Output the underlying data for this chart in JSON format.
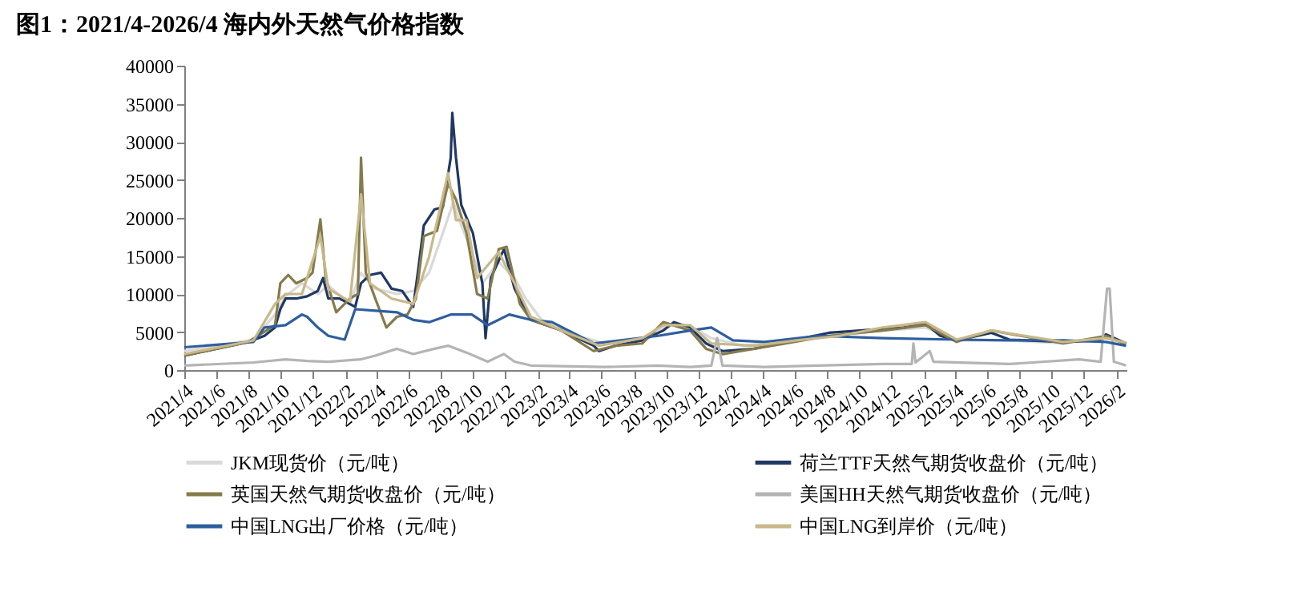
{
  "chart_data": {
    "type": "line",
    "title": "图1：2021/4-2026/4 海内外天然气价格指数",
    "xlim": [
      "2021-04-01",
      "2026-02-20"
    ],
    "xticks": [
      {
        "value": "2021-04",
        "label": "2021/4"
      },
      {
        "value": "2021-06",
        "label": "2021/6"
      },
      {
        "value": "2021-08",
        "label": "2021/8"
      },
      {
        "value": "2021-10",
        "label": "2021/10"
      },
      {
        "value": "2021-12",
        "label": "2021/12"
      },
      {
        "value": "2022-02",
        "label": "2022/2"
      },
      {
        "value": "2022-04",
        "label": "2022/4"
      },
      {
        "value": "2022-06",
        "label": "2022/6"
      },
      {
        "value": "2022-08",
        "label": "2022/8"
      },
      {
        "value": "2022-10",
        "label": "2022/10"
      },
      {
        "value": "2022-12",
        "label": "2022/12"
      },
      {
        "value": "2023-02",
        "label": "2023/2"
      },
      {
        "value": "2023-04",
        "label": "2023/4"
      },
      {
        "value": "2023-06",
        "label": "2023/6"
      },
      {
        "value": "2023-08",
        "label": "2023/8"
      },
      {
        "value": "2023-10",
        "label": "2023/10"
      },
      {
        "value": "2023-12",
        "label": "2023/12"
      },
      {
        "value": "2024-02",
        "label": "2024/2"
      },
      {
        "value": "2024-04",
        "label": "2024/4"
      },
      {
        "value": "2024-06",
        "label": "2024/6"
      },
      {
        "value": "2024-08",
        "label": "2024/8"
      },
      {
        "value": "2024-10",
        "label": "2024/10"
      },
      {
        "value": "2024-12",
        "label": "2024/12"
      },
      {
        "value": "2025-02",
        "label": "2025/2"
      },
      {
        "value": "2025-04",
        "label": "2025/4"
      },
      {
        "value": "2025-06",
        "label": "2025/6"
      },
      {
        "value": "2025-08",
        "label": "2025/8"
      },
      {
        "value": "2025-10",
        "label": "2025/10"
      },
      {
        "value": "2025-12",
        "label": "2025/12"
      },
      {
        "value": "2026-02",
        "label": "2026/2"
      }
    ],
    "ylim": [
      0,
      40000
    ],
    "yticks": [
      0,
      5000,
      10000,
      15000,
      20000,
      25000,
      30000,
      35000,
      40000
    ],
    "grid": false,
    "legend": "bottom",
    "marker": "none",
    "line_style": "solid",
    "series": [
      {
        "name": "JKM现货价（元/吨）",
        "color": "#d9d9d9",
        "x": [
          "2021-04-01",
          "2021-08-10",
          "2021-09-20",
          "2021-10-10",
          "2021-11-10",
          "2021-12-10",
          "2021-12-30",
          "2022-02-09",
          "2022-03-01",
          "2022-03-29",
          "2022-05-09",
          "2022-06-09",
          "2022-07-09",
          "2022-08-09",
          "2022-08-24",
          "2022-09-08",
          "2022-09-28",
          "2022-10-18",
          "2022-11-18",
          "2022-12-18",
          "2023-01-08",
          "2023-02-07",
          "2023-04-17",
          "2023-06-07",
          "2023-08-27",
          "2023-10-06",
          "2023-11-16",
          "2023-12-26",
          "2024-02-25",
          "2024-05-15",
          "2024-08-05",
          "2024-11-15",
          "2025-02-04",
          "2025-04-04",
          "2025-07-13",
          "2025-10-23",
          "2026-01-12",
          "2026-02-19"
        ],
        "values": [
          2500,
          4000,
          7300,
          9700,
          11400,
          10000,
          11100,
          8700,
          12800,
          10700,
          10000,
          10400,
          12800,
          19000,
          22100,
          19000,
          15500,
          11400,
          14200,
          12100,
          9400,
          6600,
          4500,
          3500,
          4200,
          5900,
          5800,
          4200,
          3200,
          3900,
          4500,
          5200,
          5600,
          3900,
          3900,
          3500,
          4200,
          3500
        ]
      },
      {
        "name": "荷兰TTF天然气期货收盘价（元/吨）",
        "color": "#1f3864",
        "x": [
          "2021-04-01",
          "2021-06-01",
          "2021-07-31",
          "2021-08-31",
          "2021-09-20",
          "2021-09-30",
          "2021-10-10",
          "2021-10-30",
          "2021-11-20",
          "2021-12-10",
          "2021-12-20",
          "2021-12-30",
          "2022-01-20",
          "2022-02-19",
          "2022-03-02",
          "2022-03-19",
          "2022-04-09",
          "2022-04-29",
          "2022-05-19",
          "2022-06-09",
          "2022-06-19",
          "2022-06-29",
          "2022-07-19",
          "2022-08-04",
          "2022-08-19",
          "2022-08-22",
          "2022-08-29",
          "2022-09-08",
          "2022-09-30",
          "2022-10-18",
          "2022-10-24",
          "2022-11-03",
          "2022-11-28",
          "2022-12-18",
          "2023-01-18",
          "2023-03-17",
          "2023-05-17",
          "2023-05-27",
          "2023-06-27",
          "2023-08-17",
          "2023-09-26",
          "2023-10-16",
          "2023-11-16",
          "2023-12-16",
          "2024-01-16",
          "2024-03-16",
          "2024-05-15",
          "2024-08-05",
          "2024-11-15",
          "2024-12-25",
          "2025-02-04",
          "2025-03-04",
          "2025-04-04",
          "2025-06-09",
          "2025-07-13",
          "2025-10-23",
          "2026-01-02",
          "2026-01-12",
          "2026-02-19"
        ],
        "values": [
          1900,
          2800,
          3700,
          4500,
          5600,
          8000,
          9400,
          9400,
          9700,
          10400,
          12100,
          9400,
          9400,
          8300,
          11400,
          12500,
          12800,
          10700,
          10400,
          8300,
          13500,
          19000,
          21100,
          21400,
          27900,
          33800,
          27900,
          21700,
          18000,
          11400,
          4200,
          12100,
          15900,
          10700,
          6600,
          5200,
          3200,
          2500,
          3200,
          3900,
          5200,
          6300,
          5600,
          3500,
          2500,
          2800,
          3700,
          4900,
          5400,
          5600,
          6100,
          4500,
          3900,
          4900,
          4000,
          3700,
          3900,
          4700,
          3500
        ]
      },
      {
        "name": "英国天然气期货收盘价（元/吨）",
        "color": "#857a4c",
        "x": [
          "2021-04-01",
          "2021-07-31",
          "2021-09-20",
          "2021-09-30",
          "2021-10-15",
          "2021-10-30",
          "2021-11-20",
          "2021-11-30",
          "2021-12-15",
          "2021-12-25",
          "2022-01-14",
          "2022-02-09",
          "2022-02-24",
          "2022-03-02",
          "2022-03-11",
          "2022-03-29",
          "2022-04-19",
          "2022-05-09",
          "2022-05-29",
          "2022-06-14",
          "2022-06-29",
          "2022-07-24",
          "2022-08-14",
          "2022-08-29",
          "2022-09-18",
          "2022-10-08",
          "2022-10-28",
          "2022-11-18",
          "2022-12-03",
          "2022-12-28",
          "2023-01-18",
          "2023-03-17",
          "2023-05-17",
          "2023-06-27",
          "2023-08-17",
          "2023-09-26",
          "2023-11-16",
          "2023-12-16",
          "2024-01-16",
          "2024-03-16",
          "2024-05-15",
          "2024-08-05",
          "2024-11-15",
          "2025-02-04",
          "2025-04-04",
          "2025-06-09",
          "2025-10-23",
          "2026-01-12",
          "2026-02-19"
        ],
        "values": [
          1900,
          3700,
          5900,
          11400,
          12500,
          11400,
          12100,
          12800,
          19800,
          12100,
          7600,
          9400,
          10000,
          27900,
          12800,
          9400,
          5600,
          7000,
          7300,
          9400,
          17600,
          18300,
          24500,
          22400,
          18000,
          10000,
          9400,
          15900,
          16200,
          8700,
          6600,
          5200,
          2500,
          3200,
          3500,
          6300,
          5200,
          2800,
          2100,
          2800,
          3500,
          4500,
          5200,
          5900,
          3700,
          5200,
          3500,
          4500,
          3400
        ]
      },
      {
        "name": "美国HH天然气期货收盘价（元/吨）",
        "color": "#b4b4b4",
        "x": [
          "2021-04-01",
          "2021-08-10",
          "2021-10-10",
          "2021-11-20",
          "2021-12-30",
          "2022-03-01",
          "2022-03-29",
          "2022-05-09",
          "2022-06-09",
          "2022-07-19",
          "2022-08-14",
          "2022-09-18",
          "2022-10-28",
          "2022-11-18",
          "2022-11-28",
          "2022-12-18",
          "2023-01-18",
          "2023-06-07",
          "2023-09-16",
          "2023-11-16",
          "2023-12-26",
          "2024-01-06",
          "2024-01-16",
          "2024-04-05",
          "2024-07-15",
          "2024-11-15",
          "2025-01-09",
          "2025-01-12",
          "2025-01-16",
          "2025-02-12",
          "2025-02-19",
          "2025-07-13",
          "2025-11-22",
          "2026-01-02",
          "2026-01-14",
          "2026-01-19",
          "2026-01-27",
          "2026-02-19"
        ],
        "values": [
          600,
          1000,
          1400,
          1200,
          1100,
          1400,
          1900,
          2800,
          2100,
          2800,
          3200,
          2300,
          1100,
          1800,
          2100,
          1100,
          600,
          400,
          600,
          400,
          600,
          4200,
          600,
          400,
          600,
          800,
          800,
          3500,
          1000,
          2500,
          1100,
          800,
          1400,
          1100,
          10700,
          10700,
          1100,
          600
        ]
      },
      {
        "name": "中国LNG出厂价格（元/吨）",
        "color": "#2e5e9e",
        "x": [
          "2021-04-01",
          "2021-08-10",
          "2021-08-31",
          "2021-10-10",
          "2021-11-10",
          "2021-11-20",
          "2021-12-10",
          "2021-12-30",
          "2022-01-30",
          "2022-02-19",
          "2022-03-29",
          "2022-05-09",
          "2022-06-09",
          "2022-07-09",
          "2022-08-19",
          "2022-09-28",
          "2022-10-28",
          "2022-12-08",
          "2023-01-18",
          "2023-02-27",
          "2023-05-17",
          "2023-09-16",
          "2023-11-16",
          "2023-12-26",
          "2024-02-05",
          "2024-04-05",
          "2024-07-15",
          "2024-11-15",
          "2025-04-04",
          "2025-07-13",
          "2025-10-23",
          "2026-01-12",
          "2026-02-19"
        ],
        "values": [
          3000,
          3700,
          5600,
          5900,
          7300,
          7000,
          5600,
          4500,
          4000,
          8000,
          7800,
          7600,
          6600,
          6300,
          7300,
          7300,
          5900,
          7300,
          6600,
          6300,
          3500,
          4500,
          5200,
          5600,
          3900,
          3700,
          4500,
          4200,
          4000,
          3900,
          3900,
          3700,
          3200
        ]
      },
      {
        "name": "中国LNG到岸价（元/吨）",
        "color": "#c8b88a",
        "x": [
          "2021-04-01",
          "2021-08-10",
          "2021-09-20",
          "2021-10-10",
          "2021-11-10",
          "2021-12-15",
          "2021-12-30",
          "2022-02-09",
          "2022-03-02",
          "2022-03-19",
          "2022-04-29",
          "2022-06-09",
          "2022-07-09",
          "2022-08-14",
          "2022-08-29",
          "2022-09-18",
          "2022-10-08",
          "2022-11-18",
          "2022-12-18",
          "2023-01-18",
          "2023-03-17",
          "2023-05-27",
          "2023-08-17",
          "2023-09-26",
          "2023-11-16",
          "2023-12-26",
          "2024-03-16",
          "2024-06-05",
          "2024-08-25",
          "2024-11-15",
          "2025-02-04",
          "2025-04-04",
          "2025-06-09",
          "2025-10-23",
          "2026-01-12",
          "2026-02-19"
        ],
        "values": [
          2100,
          3900,
          8700,
          10000,
          10000,
          17600,
          10700,
          9000,
          23100,
          11400,
          9400,
          8700,
          14900,
          25900,
          19700,
          19700,
          12100,
          15500,
          11400,
          7000,
          5200,
          3200,
          4200,
          5900,
          5900,
          3500,
          3200,
          3900,
          4500,
          5600,
          6300,
          4000,
          5200,
          3700,
          4200,
          3600
        ]
      }
    ]
  }
}
